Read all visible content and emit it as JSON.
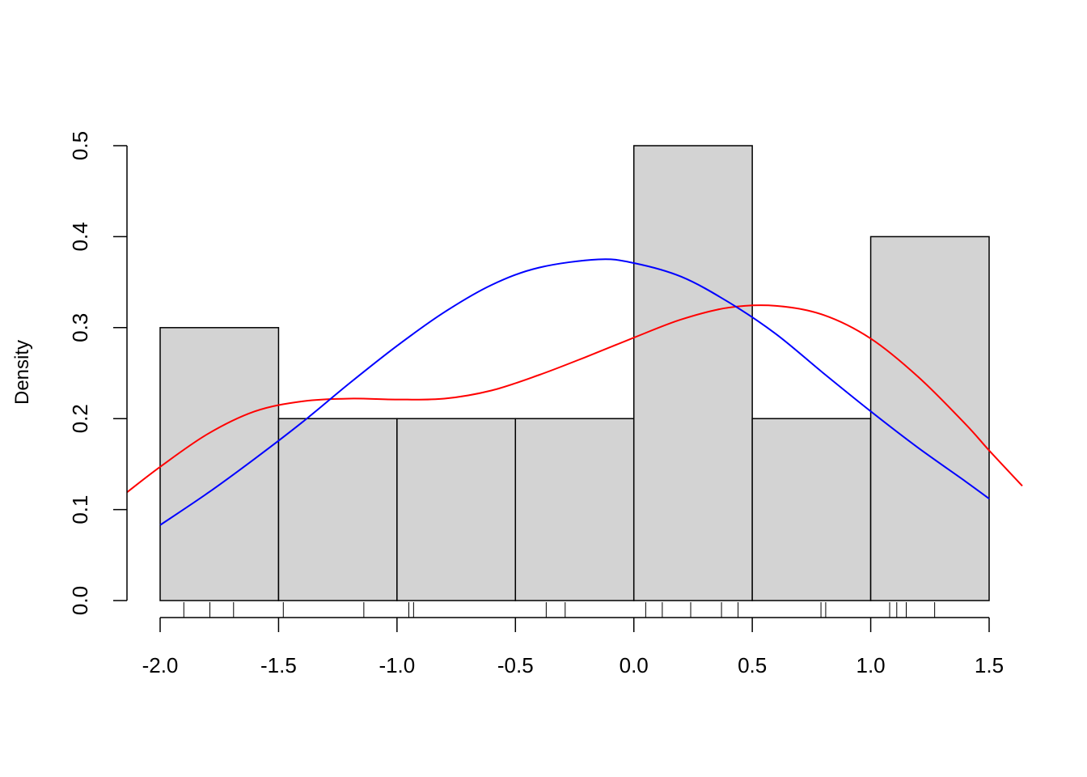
{
  "chart_data": {
    "type": "histogram",
    "title": "",
    "xlabel": "",
    "ylabel": "Density",
    "xlim": [
      -2.14,
      1.64
    ],
    "ylim": [
      0,
      0.5
    ],
    "bins": [
      {
        "x0": -2.0,
        "x1": -1.5,
        "density": 0.3
      },
      {
        "x0": -1.5,
        "x1": -1.0,
        "density": 0.2
      },
      {
        "x0": -1.0,
        "x1": -0.5,
        "density": 0.2
      },
      {
        "x0": -0.5,
        "x1": 0.0,
        "density": 0.2
      },
      {
        "x0": 0.0,
        "x1": 0.5,
        "density": 0.5
      },
      {
        "x0": 0.5,
        "x1": 1.0,
        "density": 0.2
      },
      {
        "x0": 1.0,
        "x1": 1.5,
        "density": 0.4
      }
    ],
    "x_ticks": [
      -2.0,
      -1.5,
      -1.0,
      -0.5,
      0.0,
      0.5,
      1.0,
      1.5
    ],
    "x_tick_labels": [
      "-2.0",
      "-1.5",
      "-1.0",
      "-0.5",
      "0.0",
      "0.5",
      "1.0",
      "1.5"
    ],
    "y_ticks": [
      0.0,
      0.1,
      0.2,
      0.3,
      0.4,
      0.5
    ],
    "y_tick_labels": [
      "0.0",
      "0.1",
      "0.2",
      "0.3",
      "0.4",
      "0.5"
    ],
    "rug": [
      -1.9,
      -1.79,
      -1.69,
      -1.48,
      -1.14,
      -0.95,
      -0.93,
      -0.37,
      -0.29,
      0.05,
      0.12,
      0.24,
      0.37,
      0.44,
      0.79,
      0.81,
      1.08,
      1.11,
      1.15,
      1.27
    ],
    "series": [
      {
        "type": "line",
        "color": "#ff0000",
        "x": [
          -2.14,
          -2.0,
          -1.8,
          -1.6,
          -1.4,
          -1.2,
          -1.0,
          -0.8,
          -0.6,
          -0.4,
          -0.2,
          0.0,
          0.2,
          0.4,
          0.6,
          0.8,
          1.0,
          1.2,
          1.4,
          1.5,
          1.64
        ],
        "y": [
          0.119,
          0.147,
          0.183,
          0.208,
          0.219,
          0.222,
          0.221,
          0.222,
          0.231,
          0.248,
          0.268,
          0.289,
          0.309,
          0.322,
          0.324,
          0.314,
          0.288,
          0.246,
          0.194,
          0.165,
          0.126
        ]
      },
      {
        "type": "line",
        "color": "#0000ff",
        "x": [
          -2.0,
          -1.8,
          -1.6,
          -1.4,
          -1.2,
          -1.0,
          -0.8,
          -0.6,
          -0.4,
          -0.15,
          0.0,
          0.2,
          0.4,
          0.6,
          0.8,
          1.0,
          1.2,
          1.4,
          1.5
        ],
        "y": [
          0.083,
          0.118,
          0.156,
          0.196,
          0.239,
          0.28,
          0.317,
          0.347,
          0.366,
          0.375,
          0.371,
          0.356,
          0.328,
          0.293,
          0.25,
          0.208,
          0.168,
          0.131,
          0.112
        ]
      }
    ]
  }
}
